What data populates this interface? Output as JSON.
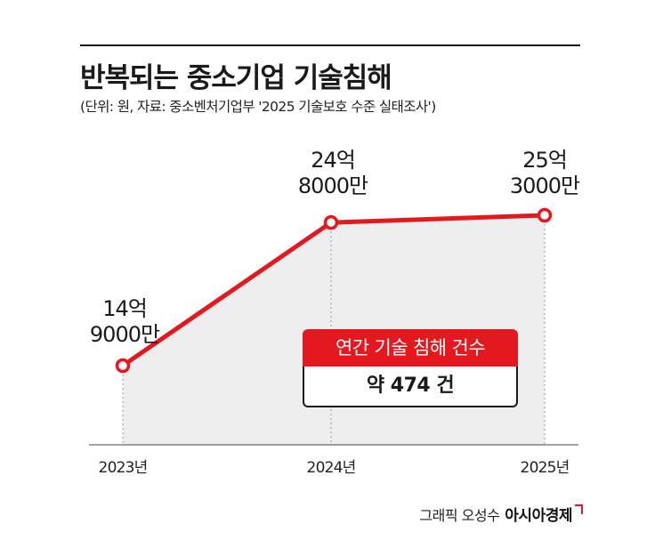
{
  "header": {
    "title": "반복되는 중소기업 기술침해",
    "subtitle": "(단위: 원, 자료: 중소벤처기업부 '2025 기술보호 수준 실태조사')"
  },
  "chart_data": {
    "type": "line",
    "x": [
      "2023년",
      "2024년",
      "2025년"
    ],
    "series": [
      {
        "values": [
          1490000000,
          2480000000,
          2530000000
        ]
      }
    ],
    "value_labels": [
      [
        "14억",
        "9000만"
      ],
      [
        "24억",
        "8000만"
      ],
      [
        "25억",
        "3000만"
      ]
    ],
    "ylim": [
      1000000000,
      3000000000
    ],
    "grid": false,
    "colors": {
      "line": "#e3191f",
      "area": "#eeeeee"
    }
  },
  "callout": {
    "label": "연간 기술 침해 건수",
    "value": "약 474 건"
  },
  "credit": {
    "text": "그래픽 오성수",
    "brand": "아시아경제"
  }
}
